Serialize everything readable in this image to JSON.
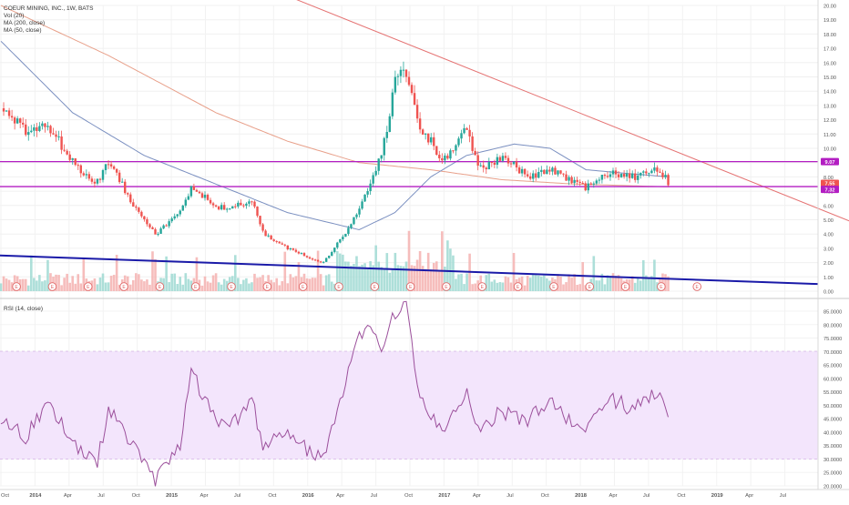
{
  "legend": {
    "title": "COEUR MINING, INC., 1W, BATS",
    "volume": "Vol (20)",
    "ma200": "MA (200, close)",
    "ma50": "MA (50, close)",
    "rsi": "RSI (14, close)"
  },
  "colors": {
    "up": "#26a69a",
    "down": "#ef5350",
    "ma200": "#e8a08a",
    "ma50": "#7a8fc0",
    "resistance_line": "#e57373",
    "support_line": "#1a1aa8",
    "horizontal_levels": "#b31ec2",
    "rsi_line": "#9b4f9b",
    "rsi_band": "#f3e5fc",
    "earnings_marker": "#e06666"
  },
  "price_axis": {
    "labels": [
      "20.00",
      "19.00",
      "18.00",
      "17.00",
      "16.00",
      "15.00",
      "14.00",
      "13.00",
      "12.00",
      "11.00",
      "10.00",
      "9.00",
      "8.00",
      "7.00",
      "6.00",
      "5.00",
      "4.00",
      "3.00",
      "2.00",
      "1.00",
      "0.00"
    ]
  },
  "rsi_axis": {
    "labels": [
      "85.0000",
      "80.0000",
      "75.0000",
      "70.0000",
      "65.0000",
      "60.0000",
      "55.0000",
      "50.0000",
      "45.0000",
      "40.0000",
      "35.0000",
      "30.0000",
      "25.0000",
      "20.0000"
    ]
  },
  "time_axis": {
    "labels": [
      "Oct",
      "2014",
      "Apr",
      "Jul",
      "Oct",
      "2015",
      "Apr",
      "Jul",
      "Oct",
      "2016",
      "Apr",
      "Jul",
      "Oct",
      "2017",
      "Apr",
      "Jul",
      "Oct",
      "2018",
      "Apr",
      "Jul",
      "Oct",
      "2019",
      "Apr",
      "Jul"
    ]
  },
  "level_badges": [
    {
      "value": "9.07",
      "color": "#b31ec2"
    },
    {
      "value": "7.55",
      "color": "#ef5350"
    },
    {
      "value": "7.32",
      "color": "#b31ec2"
    }
  ],
  "earnings_marker_label": "E",
  "chart_data": {
    "type": "candlestick",
    "symbol": "COEUR MINING, INC.",
    "interval": "1W",
    "exchange": "BATS",
    "price_ylim": [
      0,
      20
    ],
    "rsi_ylim": [
      20,
      85
    ],
    "rsi_band": [
      30,
      70
    ],
    "horizontal_levels": [
      9.07,
      7.32
    ],
    "last_price": 7.55,
    "close_path": [
      {
        "date": "2013-10",
        "close": 12.8
      },
      {
        "date": "2013-12",
        "close": 11.2
      },
      {
        "date": "2014-02",
        "close": 11.6
      },
      {
        "date": "2014-04",
        "close": 9.0
      },
      {
        "date": "2014-06",
        "close": 7.5
      },
      {
        "date": "2014-07",
        "close": 9.2
      },
      {
        "date": "2014-09",
        "close": 6.2
      },
      {
        "date": "2014-11",
        "close": 4.0
      },
      {
        "date": "2015-01",
        "close": 5.5
      },
      {
        "date": "2015-02",
        "close": 7.4
      },
      {
        "date": "2015-04",
        "close": 5.8
      },
      {
        "date": "2015-06",
        "close": 6.0
      },
      {
        "date": "2015-07",
        "close": 6.4
      },
      {
        "date": "2015-08",
        "close": 4.0
      },
      {
        "date": "2015-10",
        "close": 3.0
      },
      {
        "date": "2015-12",
        "close": 2.3
      },
      {
        "date": "2016-01",
        "close": 2.0
      },
      {
        "date": "2016-03",
        "close": 4.2
      },
      {
        "date": "2016-05",
        "close": 7.5
      },
      {
        "date": "2016-06",
        "close": 10.0
      },
      {
        "date": "2016-07",
        "close": 14.5
      },
      {
        "date": "2016-08",
        "close": 15.5
      },
      {
        "date": "2016-09",
        "close": 11.5
      },
      {
        "date": "2016-10",
        "close": 10.5
      },
      {
        "date": "2016-11",
        "close": 9.0
      },
      {
        "date": "2017-01",
        "close": 11.3
      },
      {
        "date": "2017-02",
        "close": 8.5
      },
      {
        "date": "2017-04",
        "close": 9.5
      },
      {
        "date": "2017-06",
        "close": 8.0
      },
      {
        "date": "2017-08",
        "close": 8.5
      },
      {
        "date": "2017-10",
        "close": 7.6
      },
      {
        "date": "2017-11",
        "close": 7.2
      },
      {
        "date": "2018-01",
        "close": 8.3
      },
      {
        "date": "2018-03",
        "close": 8.0
      },
      {
        "date": "2018-05",
        "close": 8.5
      },
      {
        "date": "2018-06",
        "close": 7.55
      }
    ],
    "ma50_path": [
      {
        "date": "2013-10",
        "value": 17.5
      },
      {
        "date": "2014-04",
        "value": 12.5
      },
      {
        "date": "2014-10",
        "value": 9.5
      },
      {
        "date": "2015-04",
        "value": 7.5
      },
      {
        "date": "2015-10",
        "value": 5.5
      },
      {
        "date": "2016-04",
        "value": 4.3
      },
      {
        "date": "2016-07",
        "value": 5.5
      },
      {
        "date": "2016-10",
        "value": 8.0
      },
      {
        "date": "2017-01",
        "value": 9.5
      },
      {
        "date": "2017-05",
        "value": 10.3
      },
      {
        "date": "2017-08",
        "value": 10.0
      },
      {
        "date": "2017-11",
        "value": 8.5
      },
      {
        "date": "2018-03",
        "value": 8.2
      },
      {
        "date": "2018-06",
        "value": 8.0
      }
    ],
    "ma200_path": [
      {
        "date": "2013-10",
        "value": 20.0
      },
      {
        "date": "2014-07",
        "value": 16.5
      },
      {
        "date": "2015-04",
        "value": 12.5
      },
      {
        "date": "2015-10",
        "value": 10.5
      },
      {
        "date": "2016-04",
        "value": 9.0
      },
      {
        "date": "2016-10",
        "value": 8.5
      },
      {
        "date": "2017-04",
        "value": 7.8
      },
      {
        "date": "2017-10",
        "value": 7.5
      },
      {
        "date": "2018-06",
        "value": 7.3
      }
    ],
    "resistance_trendline": [
      {
        "date": "2015-09",
        "value": 21.0
      },
      {
        "date": "2019-10",
        "value": 4.6
      }
    ],
    "support_trendline": [
      {
        "date": "2013-10",
        "value": 2.5
      },
      {
        "date": "2019-10",
        "value": 0.5
      }
    ],
    "rsi_path": [
      {
        "date": "2013-10",
        "value": 45
      },
      {
        "date": "2013-12",
        "value": 38
      },
      {
        "date": "2014-02",
        "value": 50
      },
      {
        "date": "2014-04",
        "value": 37
      },
      {
        "date": "2014-06",
        "value": 27
      },
      {
        "date": "2014-07",
        "value": 49
      },
      {
        "date": "2014-09",
        "value": 35
      },
      {
        "date": "2014-11",
        "value": 22
      },
      {
        "date": "2015-01",
        "value": 35
      },
      {
        "date": "2015-02",
        "value": 63
      },
      {
        "date": "2015-04",
        "value": 43
      },
      {
        "date": "2015-06",
        "value": 46
      },
      {
        "date": "2015-07",
        "value": 53
      },
      {
        "date": "2015-08",
        "value": 34
      },
      {
        "date": "2015-10",
        "value": 40
      },
      {
        "date": "2015-12",
        "value": 32
      },
      {
        "date": "2016-01",
        "value": 29
      },
      {
        "date": "2016-03",
        "value": 62
      },
      {
        "date": "2016-04",
        "value": 76
      },
      {
        "date": "2016-05",
        "value": 82
      },
      {
        "date": "2016-06",
        "value": 68
      },
      {
        "date": "2016-07",
        "value": 85
      },
      {
        "date": "2016-08",
        "value": 86
      },
      {
        "date": "2016-09",
        "value": 55
      },
      {
        "date": "2016-10",
        "value": 46
      },
      {
        "date": "2016-11",
        "value": 42
      },
      {
        "date": "2017-01",
        "value": 56
      },
      {
        "date": "2017-02",
        "value": 40
      },
      {
        "date": "2017-04",
        "value": 48
      },
      {
        "date": "2017-06",
        "value": 44
      },
      {
        "date": "2017-08",
        "value": 51
      },
      {
        "date": "2017-10",
        "value": 42
      },
      {
        "date": "2017-11",
        "value": 40
      },
      {
        "date": "2018-01",
        "value": 53
      },
      {
        "date": "2018-03",
        "value": 48
      },
      {
        "date": "2018-05",
        "value": 55
      },
      {
        "date": "2018-06",
        "value": 44
      }
    ]
  }
}
